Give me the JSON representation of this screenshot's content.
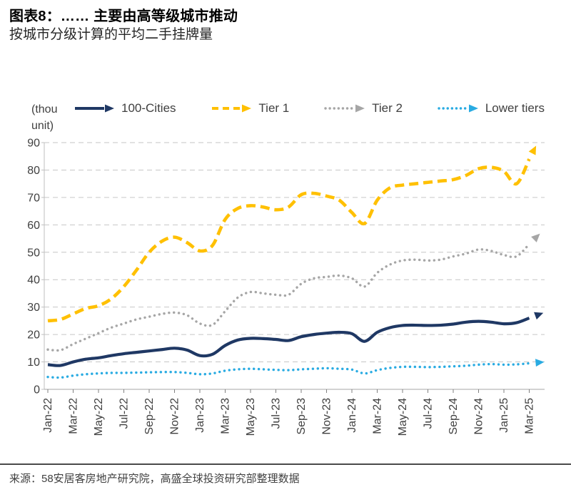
{
  "header": {
    "title": "图表8：…… 主要由高等级城市推动",
    "subtitle": "按城市分级计算的平均二手挂牌量"
  },
  "footer": {
    "source_text": "来源：58安居客房地产研究院，高盛全球投资研究部整理数据"
  },
  "chart_data": {
    "type": "line",
    "unit_label_line1": "(thou",
    "unit_label_line2": "unit)",
    "ylim": [
      0,
      90
    ],
    "ytick_step": 10,
    "grid": true,
    "legend_position": "top",
    "x_tick_every": 2,
    "x": [
      "Jan-22",
      "Feb-22",
      "Mar-22",
      "Apr-22",
      "May-22",
      "Jun-22",
      "Jul-22",
      "Aug-22",
      "Sep-22",
      "Oct-22",
      "Nov-22",
      "Dec-22",
      "Jan-23",
      "Feb-23",
      "Mar-23",
      "Apr-23",
      "May-23",
      "Jun-23",
      "Jul-23",
      "Aug-23",
      "Sep-23",
      "Oct-23",
      "Nov-23",
      "Dec-23",
      "Jan-24",
      "Feb-24",
      "Mar-24",
      "Apr-24",
      "May-24",
      "Jun-24",
      "Jul-24",
      "Aug-24",
      "Sep-24",
      "Oct-24",
      "Nov-24",
      "Dec-24",
      "Jan-25",
      "Feb-25",
      "Mar-25"
    ],
    "x_tick_labels": [
      "Jan-22",
      "Mar-22",
      "May-22",
      "Jul-22",
      "Sep-22",
      "Nov-22",
      "Jan-23",
      "Mar-23",
      "May-23",
      "Jul-23",
      "Sep-23",
      "Nov-23",
      "Jan-24",
      "Mar-24",
      "May-24",
      "Jul-24",
      "Sep-24",
      "Nov-24",
      "Jan-25",
      "Mar-25"
    ],
    "series": [
      {
        "name": "100-Cities",
        "color": "#1F3864",
        "style": "solid",
        "values": [
          9,
          8.7,
          10,
          11,
          11.5,
          12.3,
          13,
          13.5,
          14,
          14.5,
          15,
          14.3,
          12.3,
          12.8,
          16,
          18,
          18.6,
          18.5,
          18.2,
          17.8,
          19.2,
          20,
          20.5,
          20.8,
          20.3,
          17.5,
          20.8,
          22.5,
          23.3,
          23.4,
          23.3,
          23.4,
          23.8,
          24.5,
          24.8,
          24.5,
          23.9,
          24.3,
          26
        ]
      },
      {
        "name": "Tier 1",
        "color": "#FFC000",
        "style": "dashed",
        "values": [
          25,
          25.5,
          27.5,
          29.5,
          30.5,
          33,
          37.5,
          43.5,
          50,
          54,
          55.5,
          53.5,
          50.5,
          52.5,
          62,
          66,
          67,
          66.5,
          65.5,
          66.5,
          71,
          71.5,
          70.5,
          69,
          64.5,
          60.5,
          69,
          73.5,
          74.5,
          75,
          75.5,
          76,
          76.5,
          78,
          80.5,
          81,
          79.5,
          75,
          84
        ]
      },
      {
        "name": "Tier 2",
        "color": "#A6A6A6",
        "style": "dotted",
        "values": [
          14.5,
          14.3,
          16.5,
          18.5,
          20.5,
          22.5,
          24,
          25.5,
          26.5,
          27.5,
          28,
          27,
          24,
          23.5,
          28.5,
          33.5,
          35.5,
          35,
          34.5,
          34.5,
          38.5,
          40.5,
          41,
          41.5,
          40.5,
          37.5,
          42.5,
          45.5,
          47,
          47.3,
          47,
          47.3,
          48.5,
          49.5,
          51,
          50.5,
          49,
          48.5,
          53
        ]
      },
      {
        "name": "Lower tiers",
        "color": "#29ABE2",
        "style": "dotted",
        "values": [
          4.5,
          4.3,
          5,
          5.5,
          5.8,
          6,
          6,
          6.1,
          6.2,
          6.3,
          6.3,
          6,
          5.5,
          5.8,
          6.8,
          7.3,
          7.5,
          7.3,
          7.1,
          7,
          7.3,
          7.5,
          7.7,
          7.5,
          7.2,
          5.8,
          7,
          7.8,
          8.2,
          8.2,
          8.1,
          8.2,
          8.4,
          8.6,
          9,
          9.2,
          9,
          9.1,
          9.5
        ]
      }
    ],
    "axis_color": "#BFBFBF",
    "grid_color": "#C6C6C6",
    "tick_label_color": "#404040"
  }
}
